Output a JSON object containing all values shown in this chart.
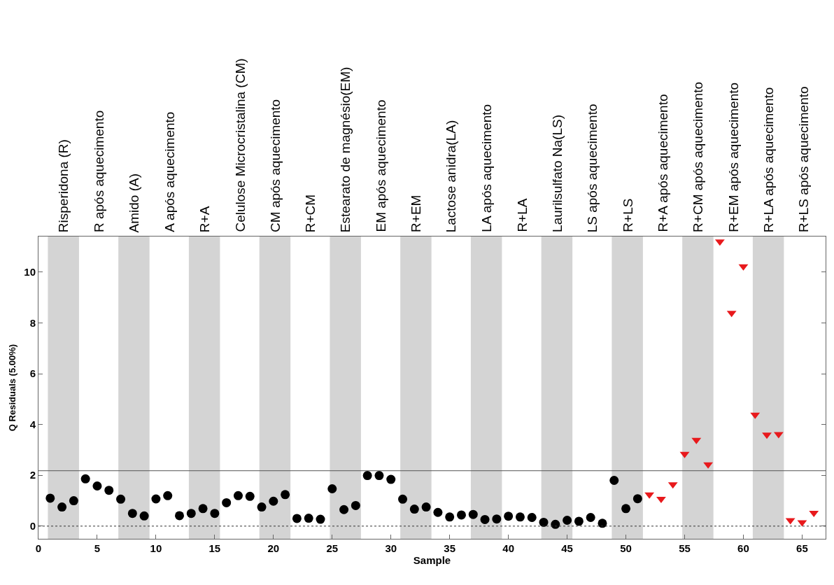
{
  "chart_data": {
    "type": "scatter",
    "xlabel": "Sample",
    "ylabel": "Q Residuals (5.00%)",
    "xlim": [
      0,
      67
    ],
    "ylim": [
      -0.5,
      11.4
    ],
    "xticks": [
      0,
      5,
      10,
      15,
      20,
      25,
      30,
      35,
      40,
      45,
      50,
      55,
      60,
      65
    ],
    "yticks": [
      0,
      2,
      4,
      6,
      8,
      10
    ],
    "grid": false,
    "series": [
      {
        "color": "#000000",
        "marker": "circle",
        "x": [
          1,
          2,
          3,
          4,
          5,
          6,
          7,
          8,
          9,
          10,
          11,
          12,
          13,
          14,
          15,
          16,
          17,
          18,
          19,
          20,
          21,
          22,
          23,
          24,
          25,
          26,
          27,
          28,
          29,
          30,
          31,
          32,
          33,
          34,
          35,
          36,
          37,
          38,
          39,
          40,
          41,
          42,
          43,
          44,
          45,
          46,
          47,
          48,
          49,
          50,
          51
        ],
        "values": [
          1.1,
          0.75,
          1.0,
          1.86,
          1.58,
          1.41,
          1.06,
          0.5,
          0.4,
          1.07,
          1.2,
          0.41,
          0.5,
          0.69,
          0.5,
          0.92,
          1.2,
          1.17,
          0.75,
          0.98,
          1.24,
          0.3,
          0.31,
          0.27,
          1.47,
          0.65,
          0.81,
          1.99,
          1.99,
          1.84,
          1.06,
          0.67,
          0.75,
          0.54,
          0.36,
          0.44,
          0.46,
          0.26,
          0.28,
          0.39,
          0.36,
          0.34,
          0.15,
          0.07,
          0.23,
          0.19,
          0.34,
          0.11,
          1.8,
          0.69,
          1.08
        ]
      },
      {
        "color": "#e8191c",
        "marker": "triangle",
        "x": [
          52,
          53,
          54,
          55,
          56,
          57,
          58,
          59,
          60,
          61,
          62,
          63,
          64,
          65,
          66
        ],
        "values": [
          1.24,
          1.07,
          1.64,
          2.84,
          3.39,
          2.43,
          11.2,
          8.39,
          10.22,
          4.38,
          3.6,
          3.62,
          0.23,
          0.15,
          0.52
        ]
      }
    ],
    "ref_lines": [
      {
        "axis": "y",
        "value": 2.18,
        "color": "#555555",
        "line_style": "solid"
      },
      {
        "axis": "y",
        "value": 0,
        "color": "#333333",
        "line_style": "dotted"
      }
    ],
    "bands": [
      {
        "axis": "x",
        "from": 0.8,
        "to": 3.45,
        "color": "#d4d4d4",
        "label": "Risperidona (R)"
      },
      {
        "axis": "x",
        "from": 6.8,
        "to": 9.45,
        "color": "#d4d4d4",
        "label": "Amido (A)"
      },
      {
        "axis": "x",
        "from": 12.8,
        "to": 15.45,
        "color": "#d4d4d4",
        "label": "R+A"
      },
      {
        "axis": "x",
        "from": 18.8,
        "to": 21.45,
        "color": "#d4d4d4",
        "label": "CM após aquecimento"
      },
      {
        "axis": "x",
        "from": 24.8,
        "to": 27.45,
        "color": "#d4d4d4",
        "label": "Estearato de magnésio(EM)"
      },
      {
        "axis": "x",
        "from": 30.8,
        "to": 33.45,
        "color": "#d4d4d4",
        "label": "R+EM"
      },
      {
        "axis": "x",
        "from": 36.8,
        "to": 39.45,
        "color": "#d4d4d4",
        "label": "LA após aquecimento"
      },
      {
        "axis": "x",
        "from": 42.8,
        "to": 45.45,
        "color": "#d4d4d4",
        "label": "Laurilsulfato Na(LS)"
      },
      {
        "axis": "x",
        "from": 48.8,
        "to": 51.45,
        "color": "#d4d4d4",
        "label": "R+LS"
      },
      {
        "axis": "x",
        "from": 54.8,
        "to": 57.45,
        "color": "#d4d4d4",
        "label": "R+CM após aquecimento"
      },
      {
        "axis": "x",
        "from": 60.8,
        "to": 63.45,
        "color": "#d4d4d4",
        "label": "R+LA após aquecimento"
      }
    ],
    "annotations": [
      "R após aquecimento",
      "A após aquecimento",
      "Celulose Microcristalina (CM)",
      "R+CM",
      "EM após aquecimento",
      "Lactose anidra(LA)",
      "R+LA",
      "LS após aquecimento",
      "R+A após aquecimento",
      "R+EM após aquecimento",
      "R+LS após aquecimento"
    ]
  }
}
